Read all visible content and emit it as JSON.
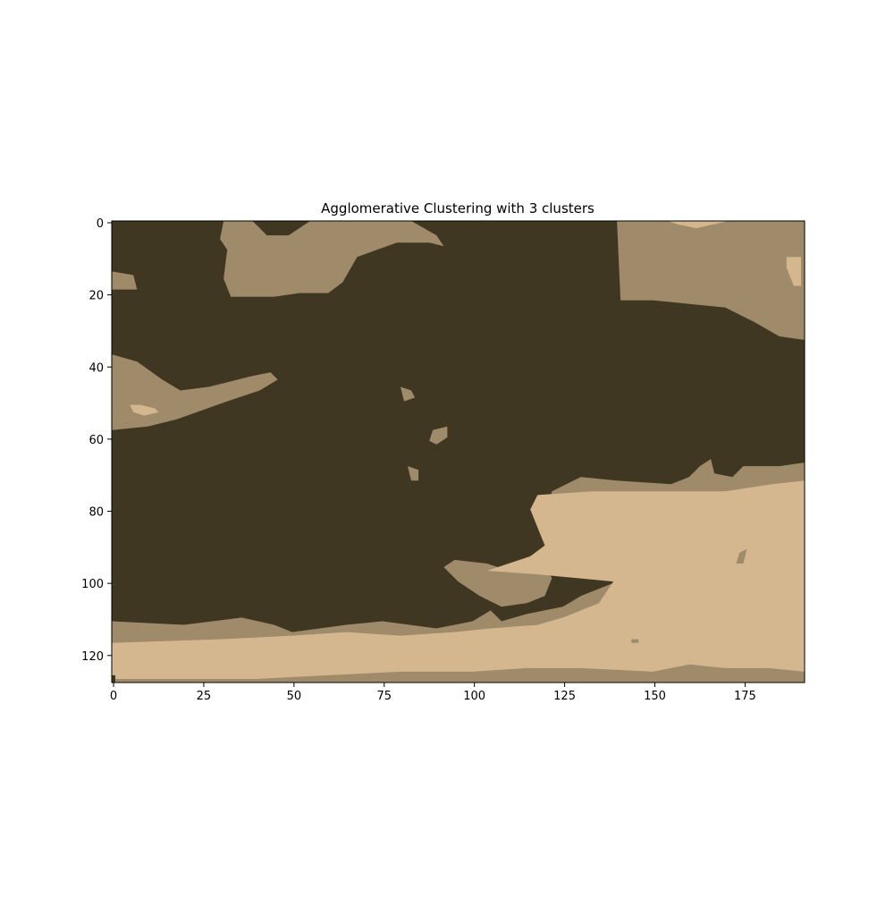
{
  "chart_data": {
    "type": "heatmap",
    "title": "Agglomerative Clustering with 3 clusters",
    "xlabel": "",
    "ylabel": "",
    "image_width": 192,
    "image_height": 128,
    "xlim": [
      -0.5,
      191.5
    ],
    "ylim": [
      127.5,
      -0.5
    ],
    "x_ticks": [
      0,
      25,
      50,
      75,
      100,
      125,
      150,
      175
    ],
    "y_ticks": [
      0,
      20,
      40,
      60,
      80,
      100,
      120
    ],
    "grid": false,
    "background_cluster": 0,
    "cluster_colors": [
      "#403723",
      "#9f8a6a",
      "#d4b78f"
    ],
    "regions": [
      {
        "cluster": 1,
        "points": [
          [
            31,
            0
          ],
          [
            39,
            0
          ],
          [
            43,
            4
          ],
          [
            49,
            4
          ],
          [
            55,
            0
          ],
          [
            83,
            0
          ],
          [
            90,
            4
          ],
          [
            92,
            7
          ],
          [
            88,
            6
          ],
          [
            79,
            6
          ],
          [
            68,
            10
          ],
          [
            64,
            17
          ],
          [
            60,
            20
          ],
          [
            52,
            20
          ],
          [
            45,
            21
          ],
          [
            33,
            21
          ],
          [
            31,
            16
          ],
          [
            32,
            8
          ],
          [
            30,
            5
          ]
        ]
      },
      {
        "cluster": 1,
        "points": [
          [
            0,
            14
          ],
          [
            6,
            15
          ],
          [
            7,
            19
          ],
          [
            0,
            19
          ]
        ]
      },
      {
        "cluster": 1,
        "points": [
          [
            140,
            0
          ],
          [
            192,
            0
          ],
          [
            192,
            33
          ],
          [
            185,
            32
          ],
          [
            178,
            28
          ],
          [
            170,
            24
          ],
          [
            160,
            23
          ],
          [
            150,
            22
          ],
          [
            141,
            22
          ]
        ]
      },
      {
        "cluster": 2,
        "points": [
          [
            154,
            0
          ],
          [
            171,
            0
          ],
          [
            162,
            2
          ],
          [
            157,
            1
          ]
        ]
      },
      {
        "cluster": 2,
        "points": [
          [
            187,
            10
          ],
          [
            191,
            10
          ],
          [
            191,
            18
          ],
          [
            189,
            18
          ],
          [
            187,
            13
          ]
        ]
      },
      {
        "cluster": 1,
        "points": [
          [
            0,
            37
          ],
          [
            7,
            39
          ],
          [
            14,
            44
          ],
          [
            19,
            47
          ],
          [
            27,
            46
          ],
          [
            39,
            43
          ],
          [
            44,
            42
          ],
          [
            46,
            44
          ],
          [
            41,
            47
          ],
          [
            32,
            50
          ],
          [
            18,
            55
          ],
          [
            10,
            57
          ],
          [
            0,
            58
          ]
        ]
      },
      {
        "cluster": 2,
        "points": [
          [
            5,
            51
          ],
          [
            8,
            51
          ],
          [
            12,
            52
          ],
          [
            13,
            53
          ],
          [
            9,
            54
          ],
          [
            6,
            53
          ]
        ]
      },
      {
        "cluster": 1,
        "points": [
          [
            80,
            46
          ],
          [
            83,
            47
          ],
          [
            84,
            49
          ],
          [
            81,
            50
          ]
        ]
      },
      {
        "cluster": 1,
        "points": [
          [
            89,
            58
          ],
          [
            93,
            57
          ],
          [
            93,
            60
          ],
          [
            90,
            62
          ],
          [
            88,
            61
          ]
        ]
      },
      {
        "cluster": 1,
        "points": [
          [
            82,
            68
          ],
          [
            85,
            69
          ],
          [
            85,
            72
          ],
          [
            83,
            72
          ]
        ]
      },
      {
        "cluster": 1,
        "points": [
          [
            0,
            111
          ],
          [
            20,
            112
          ],
          [
            36,
            110
          ],
          [
            45,
            112
          ],
          [
            50,
            114
          ],
          [
            65,
            112
          ],
          [
            75,
            111
          ],
          [
            90,
            113
          ],
          [
            100,
            111
          ],
          [
            105,
            108
          ],
          [
            108,
            111
          ],
          [
            115,
            109
          ],
          [
            125,
            107
          ],
          [
            130,
            104
          ],
          [
            140,
            100
          ],
          [
            143,
            99
          ],
          [
            155,
            88
          ],
          [
            125,
            85
          ],
          [
            121,
            79
          ],
          [
            122,
            75
          ],
          [
            130,
            71
          ],
          [
            140,
            72
          ],
          [
            155,
            73
          ],
          [
            160,
            71
          ],
          [
            163,
            68
          ],
          [
            166,
            66
          ],
          [
            167,
            70
          ],
          [
            172,
            71
          ],
          [
            175,
            68
          ],
          [
            185,
            68
          ],
          [
            192,
            67
          ],
          [
            192,
            128
          ],
          [
            0,
            128
          ]
        ]
      },
      {
        "cluster": 1,
        "points": [
          [
            92,
            96
          ],
          [
            95,
            94
          ],
          [
            104,
            95
          ],
          [
            110,
            97
          ],
          [
            116,
            97
          ],
          [
            120,
            96
          ],
          [
            122,
            99
          ],
          [
            120,
            104
          ],
          [
            115,
            106
          ],
          [
            108,
            107
          ],
          [
            102,
            104
          ],
          [
            96,
            100
          ]
        ]
      },
      {
        "cluster": 2,
        "points": [
          [
            0,
            117
          ],
          [
            30,
            116
          ],
          [
            50,
            115
          ],
          [
            65,
            114
          ],
          [
            80,
            115
          ],
          [
            95,
            114
          ],
          [
            105,
            113
          ],
          [
            118,
            112
          ],
          [
            125,
            110
          ],
          [
            135,
            106
          ],
          [
            139,
            100
          ],
          [
            118,
            98
          ],
          [
            104,
            97
          ],
          [
            116,
            93
          ],
          [
            120,
            90
          ],
          [
            118,
            85
          ],
          [
            116,
            80
          ],
          [
            118,
            76
          ],
          [
            133,
            75
          ],
          [
            150,
            75
          ],
          [
            170,
            75
          ],
          [
            183,
            73
          ],
          [
            192,
            72
          ],
          [
            192,
            125
          ],
          [
            182,
            124
          ],
          [
            170,
            124
          ],
          [
            160,
            123
          ],
          [
            150,
            125
          ],
          [
            130,
            124
          ],
          [
            115,
            124
          ],
          [
            100,
            125
          ],
          [
            80,
            125
          ],
          [
            60,
            126
          ],
          [
            40,
            127
          ],
          [
            0,
            127
          ]
        ]
      },
      {
        "cluster": 1,
        "points": [
          [
            174,
            92
          ],
          [
            176,
            91
          ],
          [
            175,
            95
          ],
          [
            173,
            95
          ]
        ]
      },
      {
        "cluster": 1,
        "points": [
          [
            144,
            116
          ],
          [
            146,
            116
          ],
          [
            146,
            117
          ],
          [
            144,
            117
          ]
        ]
      },
      {
        "cluster": 0,
        "points": [
          [
            0,
            126
          ],
          [
            1,
            126
          ],
          [
            1,
            128
          ],
          [
            0,
            128
          ]
        ]
      }
    ]
  }
}
